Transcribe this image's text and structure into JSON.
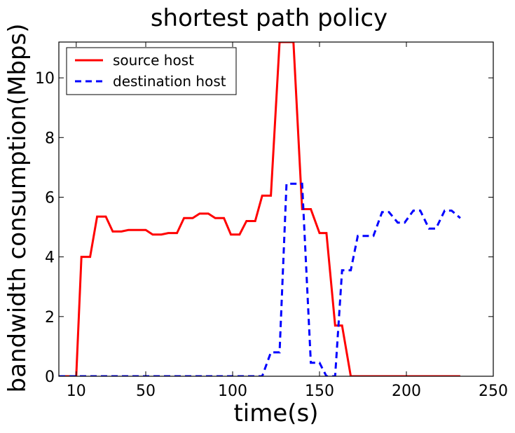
{
  "chart_data": {
    "type": "line",
    "title": "shortest path policy",
    "xlabel": "time(s)",
    "ylabel": "bandwidth consumption(Mbps)",
    "xlim": [
      0,
      250
    ],
    "ylim": [
      0,
      11.2
    ],
    "xticks": [
      10,
      50,
      100,
      150,
      200,
      250
    ],
    "yticks": [
      0,
      2,
      4,
      6,
      8,
      10
    ],
    "grid": false,
    "legend_position": "top-left",
    "series": [
      {
        "name": "source host",
        "color": "#ff0000",
        "style": "solid",
        "x": [
          0,
          10,
          13,
          18,
          22,
          27,
          31,
          36,
          40,
          45,
          50,
          54,
          59,
          63,
          68,
          72,
          77,
          81,
          86,
          90,
          95,
          99,
          104,
          108,
          113,
          117,
          122,
          127,
          131,
          135,
          140,
          145,
          150,
          154,
          159,
          163,
          168,
          172,
          177,
          181,
          186,
          190,
          195,
          199,
          204,
          208,
          213,
          217,
          222,
          226,
          231
        ],
        "y": [
          0,
          0,
          4.0,
          4.0,
          5.35,
          5.35,
          4.85,
          4.85,
          4.9,
          4.9,
          4.9,
          4.75,
          4.75,
          4.8,
          4.8,
          5.3,
          5.3,
          5.45,
          5.45,
          5.3,
          5.3,
          4.75,
          4.75,
          5.2,
          5.2,
          6.05,
          6.05,
          11.2,
          11.2,
          11.2,
          5.6,
          5.6,
          4.8,
          4.8,
          1.7,
          1.7,
          0,
          0,
          0,
          0,
          0,
          0,
          0,
          0,
          0,
          0,
          0,
          0,
          0,
          0,
          0
        ]
      },
      {
        "name": "destination host",
        "color": "#0000ff",
        "style": "dashed",
        "x": [
          0,
          117,
          122,
          127,
          131,
          136,
          140,
          145,
          150,
          154,
          159,
          163,
          168,
          172,
          177,
          181,
          186,
          190,
          195,
          199,
          204,
          208,
          213,
          217,
          222,
          226,
          231
        ],
        "y": [
          0,
          0,
          0.8,
          0.8,
          6.45,
          6.45,
          6.45,
          0.45,
          0.45,
          0,
          0,
          3.55,
          3.55,
          4.7,
          4.7,
          4.7,
          5.5,
          5.5,
          5.15,
          5.15,
          5.55,
          5.55,
          4.95,
          4.95,
          5.55,
          5.55,
          5.3
        ]
      }
    ]
  }
}
